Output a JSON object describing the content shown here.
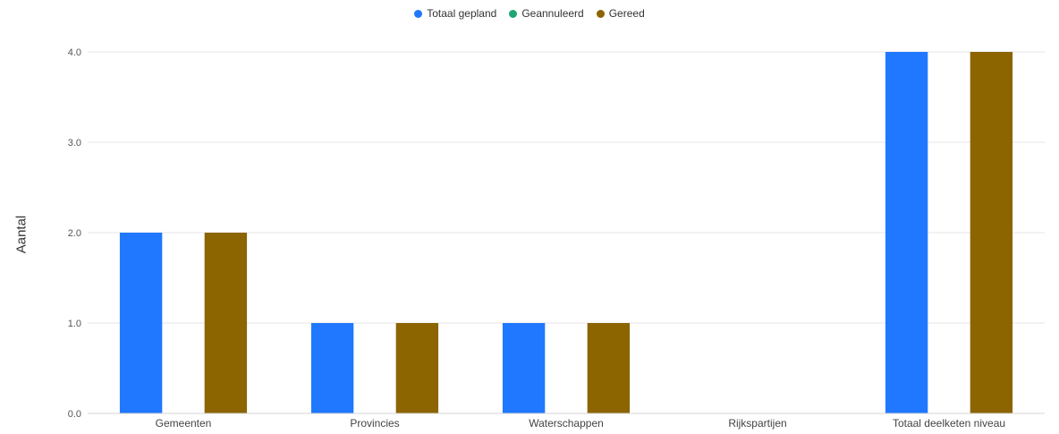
{
  "chart_data": {
    "type": "bar",
    "title": "",
    "xlabel": "",
    "ylabel": "Aantal",
    "ylim": [
      0,
      4
    ],
    "yticks": [
      "0.0",
      "1.0",
      "2.0",
      "3.0",
      "4.0"
    ],
    "grid": true,
    "legend_position": "top-center",
    "categories": [
      "Gemeenten",
      "Provincies",
      "Waterschappen",
      "Rijkspartijen",
      "Totaal deelketen niveau"
    ],
    "series": [
      {
        "name": "Totaal gepland",
        "color": "#1f78ff",
        "values": [
          2,
          1,
          1,
          0,
          4
        ]
      },
      {
        "name": "Geannuleerd",
        "color": "#1ea672",
        "values": [
          0,
          0,
          0,
          0,
          0
        ]
      },
      {
        "name": "Gereed",
        "color": "#8c6400",
        "values": [
          2,
          1,
          1,
          0,
          4
        ]
      }
    ]
  }
}
